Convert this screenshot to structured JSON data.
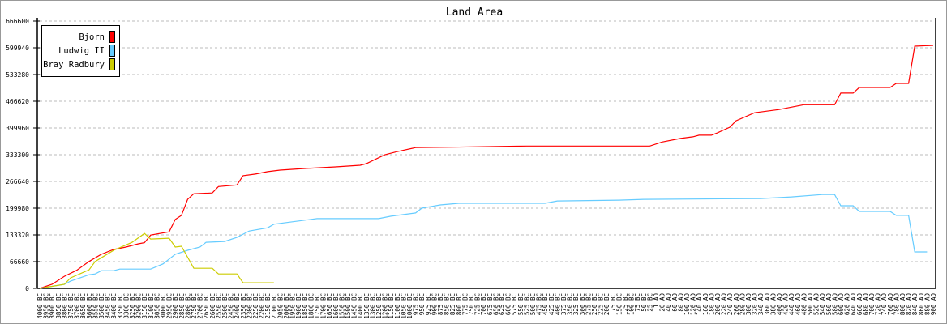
{
  "chart_data": {
    "type": "line",
    "title": "Land Area",
    "xlabel": "",
    "ylabel": "",
    "ylim": [
      0,
      666600
    ],
    "yticks": [
      0,
      66660,
      133320,
      199980,
      266640,
      333300,
      399960,
      466620,
      533280,
      599940,
      666600
    ],
    "grid": true,
    "legend_position": "top-left",
    "categories": [
      "4000 BC",
      "3950 BC",
      "3900 BC",
      "3850 BC",
      "3800 BC",
      "3750 BC",
      "3700 BC",
      "3650 BC",
      "3600 BC",
      "3550 BC",
      "3500 BC",
      "3450 BC",
      "3400 BC",
      "3350 BC",
      "3300 BC",
      "3250 BC",
      "3200 BC",
      "3150 BC",
      "3100 BC",
      "3050 BC",
      "3000 BC",
      "2950 BC",
      "2900 BC",
      "2850 BC",
      "2800 BC",
      "2750 BC",
      "2700 BC",
      "2650 BC",
      "2600 BC",
      "2550 BC",
      "2500 BC",
      "2450 BC",
      "2400 BC",
      "2350 BC",
      "2300 BC",
      "2250 BC",
      "2200 BC",
      "2150 BC",
      "2100 BC",
      "2050 BC",
      "2000 BC",
      "1950 BC",
      "1900 BC",
      "1850 BC",
      "1800 BC",
      "1750 BC",
      "1700 BC",
      "1650 BC",
      "1600 BC",
      "1550 BC",
      "1500 BC",
      "1450 BC",
      "1400 BC",
      "1350 BC",
      "1300 BC",
      "1250 BC",
      "1200 BC",
      "1150 BC",
      "1100 BC",
      "1050 BC",
      "1000 BC",
      "975 BC",
      "950 BC",
      "925 BC",
      "900 BC",
      "875 BC",
      "850 BC",
      "825 BC",
      "800 BC",
      "775 BC",
      "750 BC",
      "725 BC",
      "700 BC",
      "675 BC",
      "650 BC",
      "625 BC",
      "600 BC",
      "575 BC",
      "550 BC",
      "525 BC",
      "500 BC",
      "475 BC",
      "450 BC",
      "425 BC",
      "400 BC",
      "375 BC",
      "350 BC",
      "325 BC",
      "300 BC",
      "275 BC",
      "250 BC",
      "225 BC",
      "200 BC",
      "175 BC",
      "150 BC",
      "125 BC",
      "100 BC",
      "75 BC",
      "50 BC",
      "25 BC",
      "1 AD",
      "20 AD",
      "40 AD",
      "60 AD",
      "80 AD",
      "100 AD",
      "120 AD",
      "140 AD",
      "160 AD",
      "180 AD",
      "200 AD",
      "220 AD",
      "240 AD",
      "260 AD",
      "280 AD",
      "300 AD",
      "320 AD",
      "340 AD",
      "360 AD",
      "380 AD",
      "400 AD",
      "420 AD",
      "440 AD",
      "460 AD",
      "480 AD",
      "500 AD",
      "520 AD",
      "540 AD",
      "560 AD",
      "580 AD",
      "600 AD",
      "620 AD",
      "640 AD",
      "660 AD",
      "680 AD",
      "700 AD",
      "720 AD",
      "740 AD",
      "760 AD",
      "780 AD",
      "800 AD",
      "820 AD",
      "840 AD",
      "860 AD",
      "880 AD",
      "900 AD"
    ],
    "series": [
      {
        "name": "Bjorn",
        "color": "#ff0000",
        "points": [
          [
            "4000 BC",
            0
          ],
          [
            "3900 BC",
            10000
          ],
          [
            "3800 BC",
            30000
          ],
          [
            "3700 BC",
            45000
          ],
          [
            "3600 BC",
            67000
          ],
          [
            "3500 BC",
            85000
          ],
          [
            "3400 BC",
            97000
          ],
          [
            "3300 BC",
            103000
          ],
          [
            "3200 BC",
            111000
          ],
          [
            "3150 BC",
            114000
          ],
          [
            "3100 BC",
            133000
          ],
          [
            "2950 BC",
            141000
          ],
          [
            "2900 BC",
            172000
          ],
          [
            "2850 BC",
            182000
          ],
          [
            "2800 BC",
            222000
          ],
          [
            "2750 BC",
            236000
          ],
          [
            "2600 BC",
            238000
          ],
          [
            "2550 BC",
            254000
          ],
          [
            "2400 BC",
            258000
          ],
          [
            "2350 BC",
            281000
          ],
          [
            "2250 BC",
            285000
          ],
          [
            "2150 BC",
            291000
          ],
          [
            "2050 BC",
            295000
          ],
          [
            "1850 BC",
            299000
          ],
          [
            "1600 BC",
            303000
          ],
          [
            "1400 BC",
            307000
          ],
          [
            "1350 BC",
            311000
          ],
          [
            "1200 BC",
            333000
          ],
          [
            "1100 BC",
            341000
          ],
          [
            "975 BC",
            351000
          ],
          [
            "825 BC",
            352000
          ],
          [
            "525 BC",
            355000
          ],
          [
            "25 BC",
            355000
          ],
          [
            "20 AD",
            365000
          ],
          [
            "80 AD",
            374000
          ],
          [
            "120 AD",
            378000
          ],
          [
            "140 AD",
            382000
          ],
          [
            "180 AD",
            382000
          ],
          [
            "200 AD",
            388000
          ],
          [
            "240 AD",
            402000
          ],
          [
            "260 AD",
            418000
          ],
          [
            "320 AD",
            438000
          ],
          [
            "400 AD",
            446000
          ],
          [
            "480 AD",
            458000
          ],
          [
            "580 AD",
            458000
          ],
          [
            "600 AD",
            487000
          ],
          [
            "640 AD",
            487000
          ],
          [
            "660 AD",
            501000
          ],
          [
            "760 AD",
            501000
          ],
          [
            "780 AD",
            511000
          ],
          [
            "820 AD",
            511000
          ],
          [
            "840 AD",
            604000
          ],
          [
            "900 AD",
            606000
          ]
        ]
      },
      {
        "name": "Ludwig II",
        "color": "#66ccff",
        "points": [
          [
            "4000 BC",
            0
          ],
          [
            "3800 BC",
            10000
          ],
          [
            "3750 BC",
            18000
          ],
          [
            "3600 BC",
            34000
          ],
          [
            "3550 BC",
            36000
          ],
          [
            "3500 BC",
            44000
          ],
          [
            "3400 BC",
            44000
          ],
          [
            "3350 BC",
            48000
          ],
          [
            "3100 BC",
            48000
          ],
          [
            "3000 BC",
            61000
          ],
          [
            "2900 BC",
            85000
          ],
          [
            "2800 BC",
            95000
          ],
          [
            "2700 BC",
            103000
          ],
          [
            "2650 BC",
            115000
          ],
          [
            "2500 BC",
            117000
          ],
          [
            "2400 BC",
            127000
          ],
          [
            "2300 BC",
            143000
          ],
          [
            "2150 BC",
            151000
          ],
          [
            "2100 BC",
            160000
          ],
          [
            "1950 BC",
            166000
          ],
          [
            "1750 BC",
            174000
          ],
          [
            "1250 BC",
            174000
          ],
          [
            "1150 BC",
            180000
          ],
          [
            "975 BC",
            188000
          ],
          [
            "950 BC",
            200000
          ],
          [
            "875 BC",
            208000
          ],
          [
            "800 BC",
            212000
          ],
          [
            "450 BC",
            212000
          ],
          [
            "400 BC",
            218000
          ],
          [
            "150 BC",
            220000
          ],
          [
            "50 BC",
            222000
          ],
          [
            "340 AD",
            224000
          ],
          [
            "440 AD",
            228000
          ],
          [
            "540 AD",
            234000
          ],
          [
            "580 AD",
            234000
          ],
          [
            "600 AD",
            206000
          ],
          [
            "640 AD",
            206000
          ],
          [
            "660 AD",
            192000
          ],
          [
            "760 AD",
            192000
          ],
          [
            "780 AD",
            182000
          ],
          [
            "820 AD",
            182000
          ],
          [
            "840 AD",
            91000
          ],
          [
            "880 AD",
            91000
          ]
        ]
      },
      {
        "name": "Bray Radbury",
        "color": "#cccc00",
        "points": [
          [
            "4000 BC",
            0
          ],
          [
            "3800 BC",
            10000
          ],
          [
            "3750 BC",
            26000
          ],
          [
            "3600 BC",
            46000
          ],
          [
            "3550 BC",
            67000
          ],
          [
            "3400 BC",
            95000
          ],
          [
            "3250 BC",
            115000
          ],
          [
            "3150 BC",
            137000
          ],
          [
            "3100 BC",
            123000
          ],
          [
            "2950 BC",
            125000
          ],
          [
            "2900 BC",
            103000
          ],
          [
            "2850 BC",
            105000
          ],
          [
            "2750 BC",
            50000
          ],
          [
            "2600 BC",
            50000
          ],
          [
            "2550 BC",
            36000
          ],
          [
            "2400 BC",
            36000
          ],
          [
            "2350 BC",
            14000
          ],
          [
            "2100 BC",
            14000
          ]
        ]
      }
    ]
  }
}
